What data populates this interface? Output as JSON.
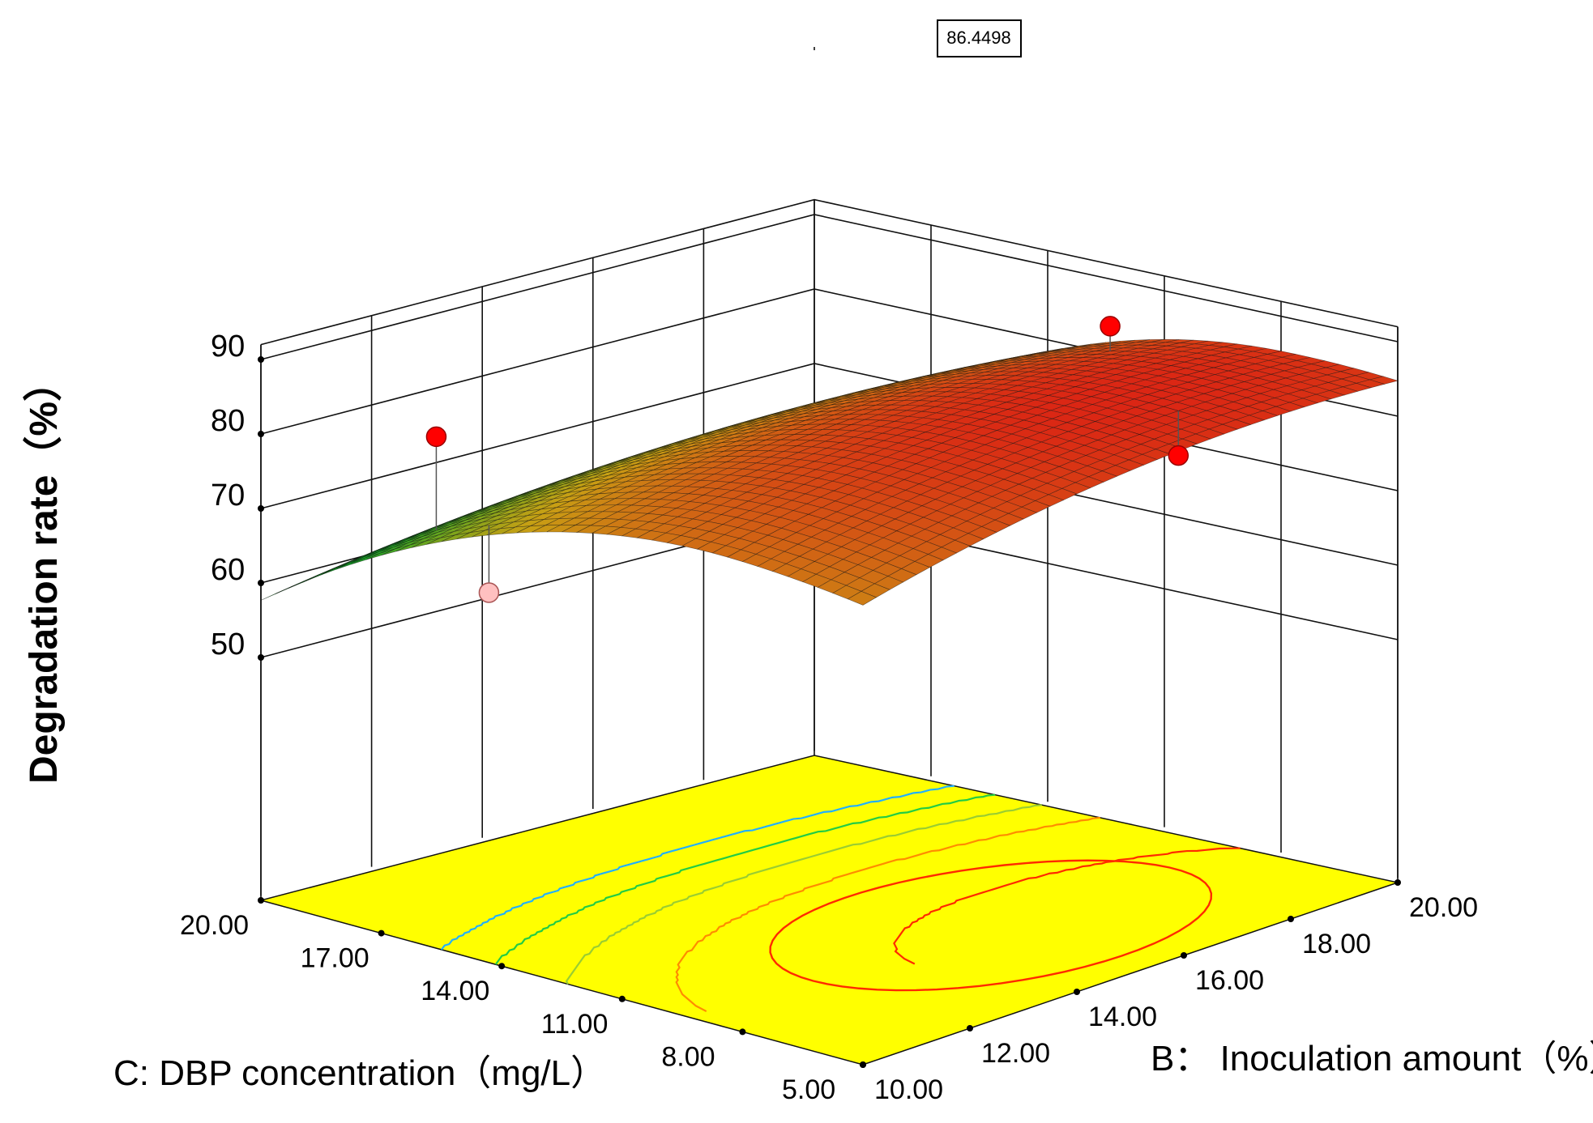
{
  "chart_data": {
    "type": "surface3d",
    "title": "",
    "zlabel": "Degradation rate（%）",
    "xlabel": "C: DBP concentration（mg/L）",
    "ylabel": "B： Inoculation amount（%）",
    "z_ticks": [
      "50",
      "60",
      "70",
      "80",
      "90"
    ],
    "c_ticks": [
      "20.00",
      "17.00",
      "14.00",
      "11.00",
      "8.00",
      "5.00"
    ],
    "b_ticks": [
      "10.00",
      "12.00",
      "14.00",
      "16.00",
      "18.00",
      "20.00"
    ],
    "zlim": [
      50,
      90
    ],
    "c_range": [
      5,
      20
    ],
    "b_range": [
      10,
      20
    ],
    "max_label": "86.4498",
    "design_points": [
      {
        "c": 17.0,
        "b": 11.0,
        "z": 82.0,
        "above": true
      },
      {
        "c": 11.0,
        "b": 19.0,
        "z": 87.5,
        "above": true
      },
      {
        "c": 6.5,
        "b": 17.0,
        "z": 80.2,
        "above": true
      },
      {
        "c": 15.0,
        "b": 10.5,
        "z": 65.0,
        "above": false
      }
    ],
    "contour_colors": [
      "#22b0ff",
      "#22cc44",
      "#9acd32",
      "#ff8c00",
      "#ff2a00"
    ]
  }
}
